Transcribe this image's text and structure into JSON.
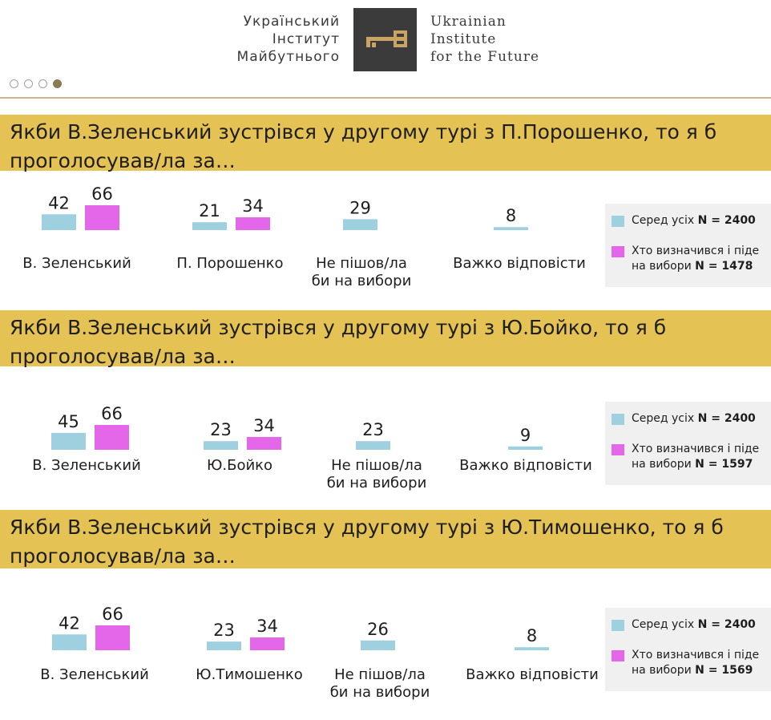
{
  "header": {
    "org_ua": [
      "Український",
      "Інститут",
      "Майбутнього"
    ],
    "org_en": [
      "Ukrainian",
      "Institute",
      "for the Future"
    ],
    "logo_icon": "key-icon",
    "slide_indicator": {
      "total": 4,
      "active": 4
    }
  },
  "colors": {
    "band": "#e5c254",
    "all": "#9fd0e0",
    "decided": "#e367e8",
    "legend_bg": "#f0f0f0",
    "accent": "#c9a462"
  },
  "chart_data": [
    {
      "type": "bar",
      "title": "Якби В.Зеленський зустрівся у другому турі з П.Порошенко, то я б проголосував/ла за…",
      "categories": [
        "В. Зеленський",
        "П. Порошенко",
        "Не пішов/ла би на вибори",
        "Важко відповісти"
      ],
      "series": [
        {
          "name": "Серед усіх N = 2400",
          "values": [
            42,
            21,
            29,
            8
          ]
        },
        {
          "name": "Хто визначився і піде на вибори N = 1478",
          "values": [
            66,
            34,
            null,
            null
          ]
        }
      ],
      "legend": {
        "all_label": "Серед усіх",
        "all_n": "N = 2400",
        "decided_label": "Хто визначився і піде на вибори",
        "decided_n": "N = 1478"
      }
    },
    {
      "type": "bar",
      "title": "Якби В.Зеленський зустрівся у другому турі з Ю.Бойко, то я б проголосував/ла за…",
      "categories": [
        "В. Зеленський",
        "Ю.Бойко",
        "Не пішов/ла би на вибори",
        "Важко відповісти"
      ],
      "series": [
        {
          "name": "Серед усіх N = 2400",
          "values": [
            45,
            23,
            23,
            9
          ]
        },
        {
          "name": "Хто визначився і піде на вибори N = 1597",
          "values": [
            66,
            34,
            null,
            null
          ]
        }
      ],
      "legend": {
        "all_label": "Серед усіх",
        "all_n": "N = 2400",
        "decided_label": "Хто визначився і піде на вибори",
        "decided_n": "N = 1597"
      }
    },
    {
      "type": "bar",
      "title": "Якби В.Зеленський зустрівся у другому турі з Ю.Тимошенко, то я б проголосував/ла за…",
      "categories": [
        "В. Зеленський",
        "Ю.Тимошенко",
        "Не пішов/ла би на вибори",
        "Важко відповісти"
      ],
      "series": [
        {
          "name": "Серед усіх N = 2400",
          "values": [
            42,
            23,
            26,
            8
          ]
        },
        {
          "name": "Хто визначився і піде на вибори N = 1569",
          "values": [
            66,
            34,
            null,
            null
          ]
        }
      ],
      "legend": {
        "all_label": "Серед усіх",
        "all_n": "N = 2400",
        "decided_label": "Хто визначився і піде на вибори",
        "decided_n": "N = 1569"
      }
    }
  ]
}
